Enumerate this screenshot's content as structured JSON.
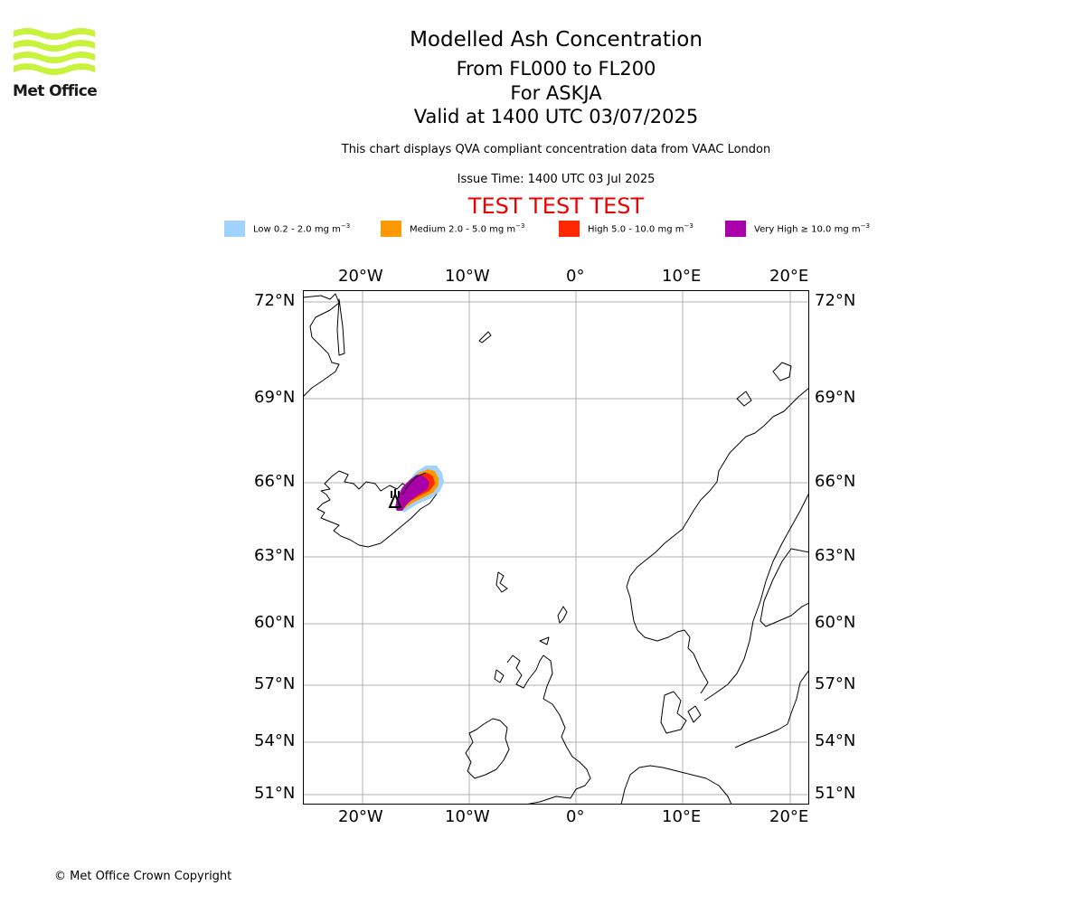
{
  "logo": {
    "text": "Met Office"
  },
  "title": {
    "main": "Modelled Ash Concentration",
    "levels": "From FL000 to FL200",
    "volcano": "For ASKJA",
    "valid": "Valid at 1400 UTC 03/07/2025",
    "compliance": "This chart displays QVA compliant concentration data from VAAC London",
    "issue": "Issue Time: 1400 UTC 03 Jul 2025",
    "test": "TEST TEST TEST"
  },
  "legend": [
    {
      "label": "Low 0.2 - 2.0 mg m",
      "unit_exp": "−3",
      "color": "#a0d2ff"
    },
    {
      "label": "Medium 2.0 - 5.0 mg m",
      "unit_exp": "−3",
      "color": "#ff9900"
    },
    {
      "label": "High 5.0 - 10.0 mg m",
      "unit_exp": "−3",
      "color": "#ff2800"
    },
    {
      "label": "Very High  ≥  10.0 mg m",
      "unit_exp": "−3",
      "color": "#aa00aa"
    }
  ],
  "map": {
    "lon_labels": [
      "20°W",
      "10°W",
      "0°",
      "10°E",
      "20°E"
    ],
    "lat_labels": [
      "72°N",
      "69°N",
      "66°N",
      "63°N",
      "60°N",
      "57°N",
      "54°N",
      "51°N"
    ],
    "grid": true,
    "volcano_marker": "volcano-icon"
  },
  "footer": {
    "copyright": "© Met Office Crown Copyright"
  }
}
